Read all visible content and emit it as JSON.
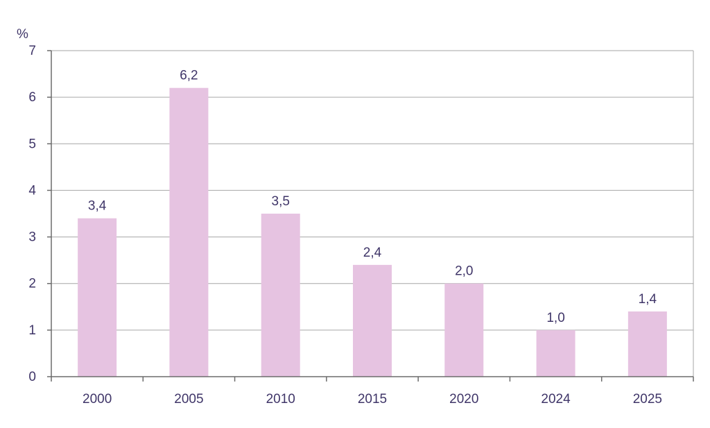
{
  "chart_data": {
    "type": "bar",
    "unit_label": "%",
    "categories": [
      "2000",
      "2005",
      "2010",
      "2015",
      "2020",
      "2024",
      "2025"
    ],
    "values": [
      3.4,
      6.2,
      3.5,
      2.4,
      2.0,
      1.0,
      1.4
    ],
    "data_labels": [
      "3,4",
      "6,2",
      "3,5",
      "2,4",
      "2,0",
      "1,0",
      "1,4"
    ],
    "y_ticks": [
      "0",
      "1",
      "2",
      "3",
      "4",
      "5",
      "6",
      "7"
    ],
    "ylim": [
      0,
      7
    ],
    "grid": true,
    "legend": "none",
    "colors": {
      "bar": "#e6c3e1",
      "text": "#3f3568",
      "grid": "#a6a6a6",
      "axis": "#6b6b6b"
    }
  }
}
